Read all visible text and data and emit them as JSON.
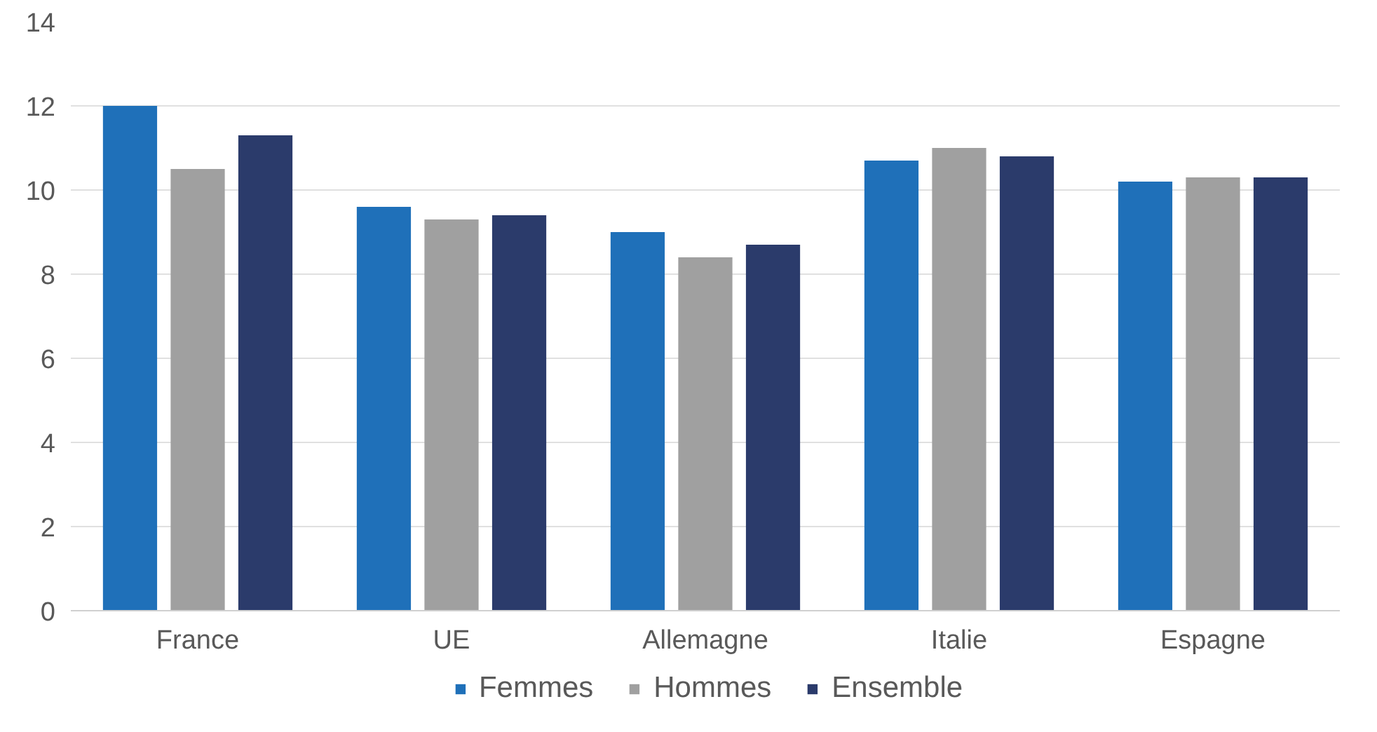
{
  "chart_data": {
    "type": "bar",
    "categories": [
      "France",
      "UE",
      "Allemagne",
      "Italie",
      "Espagne"
    ],
    "series": [
      {
        "name": "Femmes",
        "color": "#1f70b9",
        "values": [
          12.0,
          9.6,
          9.0,
          10.7,
          10.2
        ]
      },
      {
        "name": "Hommes",
        "color": "#a0a0a0",
        "values": [
          10.5,
          9.3,
          8.4,
          11.0,
          10.3
        ]
      },
      {
        "name": "Ensemble",
        "color": "#2b3b6b",
        "values": [
          11.3,
          9.4,
          8.7,
          10.8,
          10.3
        ]
      }
    ],
    "ylim": [
      0,
      14
    ],
    "yticks": [
      0,
      2,
      4,
      6,
      8,
      10,
      12,
      14
    ],
    "grid": "y",
    "legend": "bottom"
  }
}
